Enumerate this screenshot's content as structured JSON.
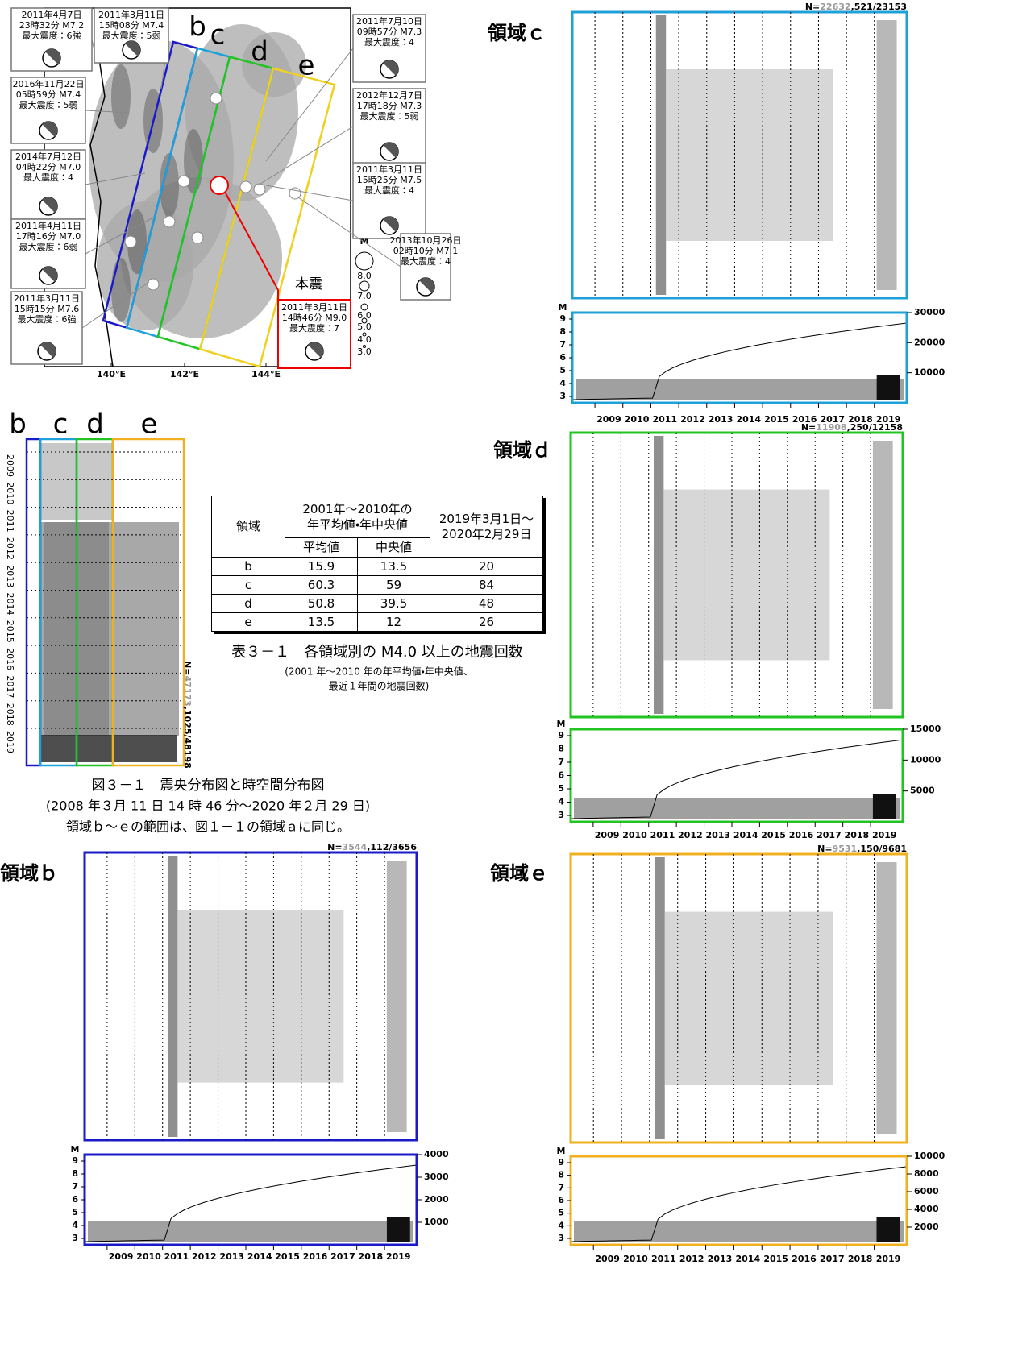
{
  "map": {
    "region_labels": [
      "b",
      "c",
      "d",
      "e"
    ],
    "lon_labels": [
      "140°E",
      "142°E",
      "144°E"
    ],
    "magnitude_title": "M",
    "magnitude_labels": [
      "8.0",
      "7.0",
      "6.0",
      "5.0",
      "4.0",
      "3.0"
    ],
    "mainshock_label": "本震",
    "events": [
      {
        "lines": [
          "2011年4月7日",
          "23時32分 M7.2",
          "最大震度：6強"
        ]
      },
      {
        "lines": [
          "2011年3月11日",
          "15時08分 M7.4",
          "最大震度：5弱"
        ]
      },
      {
        "lines": [
          "2016年11月22日",
          "05時59分 M7.4",
          "最大震度：5弱"
        ]
      },
      {
        "lines": [
          "2014年7月12日",
          "04時22分 M7.0",
          "最大震度：4"
        ]
      },
      {
        "lines": [
          "2011年4月11日",
          "17時16分 M7.0",
          "最大震度：6弱"
        ]
      },
      {
        "lines": [
          "2011年3月11日",
          "15時15分 M7.6",
          "最大震度：6強"
        ]
      },
      {
        "lines": [
          "2011年7月10日",
          "09時57分 M7.3",
          "最大震度：4"
        ]
      },
      {
        "lines": [
          "2012年12月7日",
          "17時18分 M7.3",
          "最大震度：5弱"
        ]
      },
      {
        "lines": [
          "2011年3月11日",
          "15時25分 M7.5",
          "最大震度：4"
        ]
      },
      {
        "lines": [
          "2013年10月26日",
          "02時10分 M7.1",
          "最大震度：4"
        ]
      }
    ],
    "mainshock": {
      "lines": [
        "2011年3月11日",
        "14時46分 M9.0",
        "最大震度：7"
      ]
    }
  },
  "spacetime": {
    "region_labels": [
      "b",
      "c",
      "d",
      "e"
    ],
    "years": [
      2009,
      2010,
      2011,
      2012,
      2013,
      2014,
      2015,
      2016,
      2017,
      2018,
      2019
    ],
    "n_prefix": "N=",
    "n_old": "47173",
    "n_new": ",1025/48198"
  },
  "table": {
    "header": [
      [
        "領域"
      ],
      [
        "2001年～2010年の",
        "年平均値・年中央値"
      ],
      [
        "2019年3月1日～",
        "2020年2月29日"
      ]
    ],
    "subheader": [
      "平均値",
      "中央値"
    ],
    "rows": [
      [
        "b",
        15.9,
        13.5,
        20
      ],
      [
        "c",
        60.3,
        59,
        84
      ],
      [
        "d",
        50.8,
        39.5,
        48
      ],
      [
        "e",
        13.5,
        12,
        26
      ]
    ]
  },
  "table_caption": {
    "title": "表３－１　各領域別の M4.0 以上の地震回数",
    "notes": [
      "(2001 年～2010 年の年平均値・年中央値、",
      "最近１年間の地震回数)"
    ]
  },
  "figure_caption": [
    "図３－１　震央分布図と時空間分布図",
    "(2008 年３月 11 日 14 時 46 分～2020 年２月 29 日)",
    "領域ｂ～ｅの範囲は、図１－１の領域ａに同じ。"
  ],
  "panels": [
    {
      "title": "領域ｃ",
      "n_prefix": "N=",
      "n_old": "22632",
      "n_new": ",521/23153",
      "m_title": "M",
      "m_ticks": [
        3,
        4,
        5,
        6,
        7,
        8,
        9
      ],
      "count_ticks": [
        10000,
        20000,
        30000
      ],
      "years": [
        2009,
        2010,
        2011,
        2012,
        2013,
        2014,
        2015,
        2016,
        2017,
        2018,
        2019
      ]
    },
    {
      "title": "領域ｄ",
      "n_prefix": "N=",
      "n_old": "11908",
      "n_new": ",250/12158",
      "m_title": "M",
      "m_ticks": [
        3,
        4,
        5,
        6,
        7,
        8,
        9
      ],
      "count_ticks": [
        5000,
        10000,
        15000
      ],
      "years": [
        2009,
        2010,
        2011,
        2012,
        2013,
        2014,
        2015,
        2016,
        2017,
        2018,
        2019
      ]
    },
    {
      "title": "領域ｂ",
      "n_prefix": "N=",
      "n_old": "3544",
      "n_new": ",112/3656",
      "m_title": "M",
      "m_ticks": [
        3,
        4,
        5,
        6,
        7,
        8,
        9
      ],
      "count_ticks": [
        1000,
        2000,
        3000,
        4000
      ],
      "years": [
        2009,
        2010,
        2011,
        2012,
        2013,
        2014,
        2015,
        2016,
        2017,
        2018,
        2019
      ]
    },
    {
      "title": "領域ｅ",
      "n_prefix": "N=",
      "n_old": "9531",
      "n_new": ",150/9681",
      "m_title": "M",
      "m_ticks": [
        3,
        4,
        5,
        6,
        7,
        8,
        9
      ],
      "count_ticks": [
        2000,
        4000,
        6000,
        8000,
        10000
      ],
      "years": [
        2009,
        2010,
        2011,
        2012,
        2013,
        2014,
        2015,
        2016,
        2017,
        2018,
        2019
      ]
    }
  ]
}
